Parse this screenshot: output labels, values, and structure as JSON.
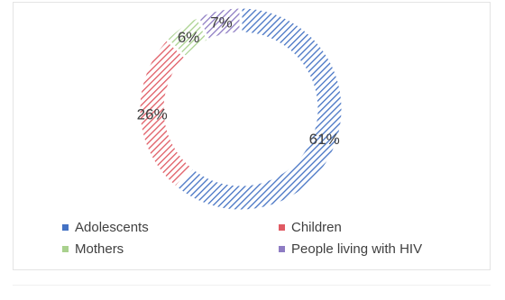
{
  "chart_data": {
    "type": "pie",
    "variant": "donut",
    "categories": [
      "Adolescents",
      "Children",
      "Mothers",
      "People living with HIV"
    ],
    "values": [
      61,
      26,
      6,
      7
    ],
    "labels": [
      "61%",
      "26%",
      "6%",
      "7%"
    ],
    "colors": [
      "#4472c4",
      "#e05a63",
      "#a9d18e",
      "#8e7cc3"
    ],
    "fill_pattern": "diagonal-hatch",
    "legend_position": "bottom"
  }
}
